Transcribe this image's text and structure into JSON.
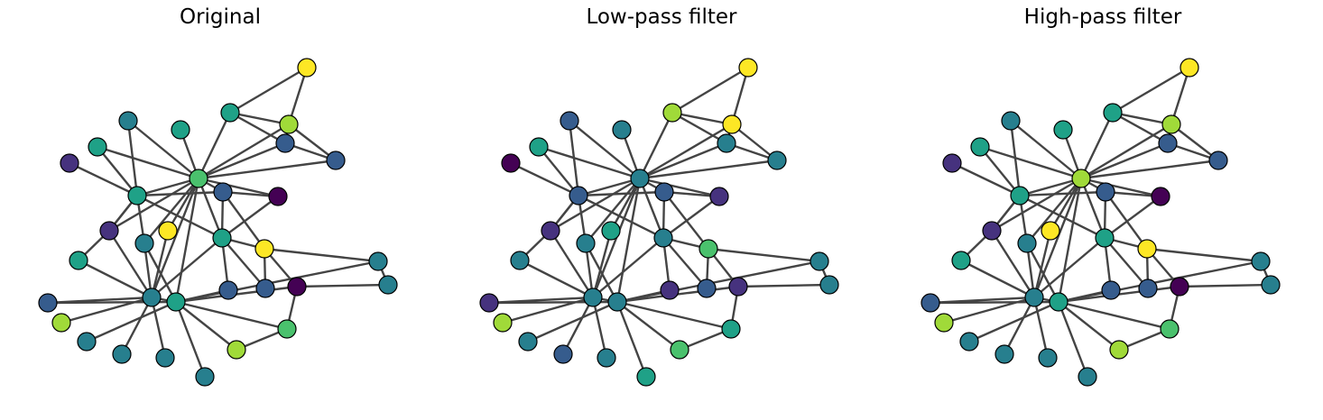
{
  "panels": [
    {
      "title": "Original"
    },
    {
      "title": "Low-pass filter"
    },
    {
      "title": "High-pass filter"
    }
  ],
  "palette": [
    "#440154",
    "#46327e",
    "#365c8d",
    "#277f8e",
    "#1fa187",
    "#4ac16d",
    "#a0da39",
    "#fde725"
  ]
}
